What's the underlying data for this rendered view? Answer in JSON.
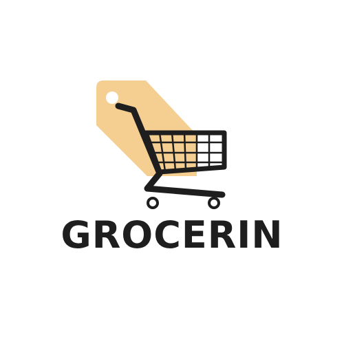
{
  "brand": {
    "name": "GROCERIN"
  },
  "colors": {
    "background": "#ffffff",
    "tag": "#f5cf92",
    "ink": "#1e1e1e"
  },
  "icons": [
    "price-tag-icon",
    "shopping-cart-icon"
  ]
}
